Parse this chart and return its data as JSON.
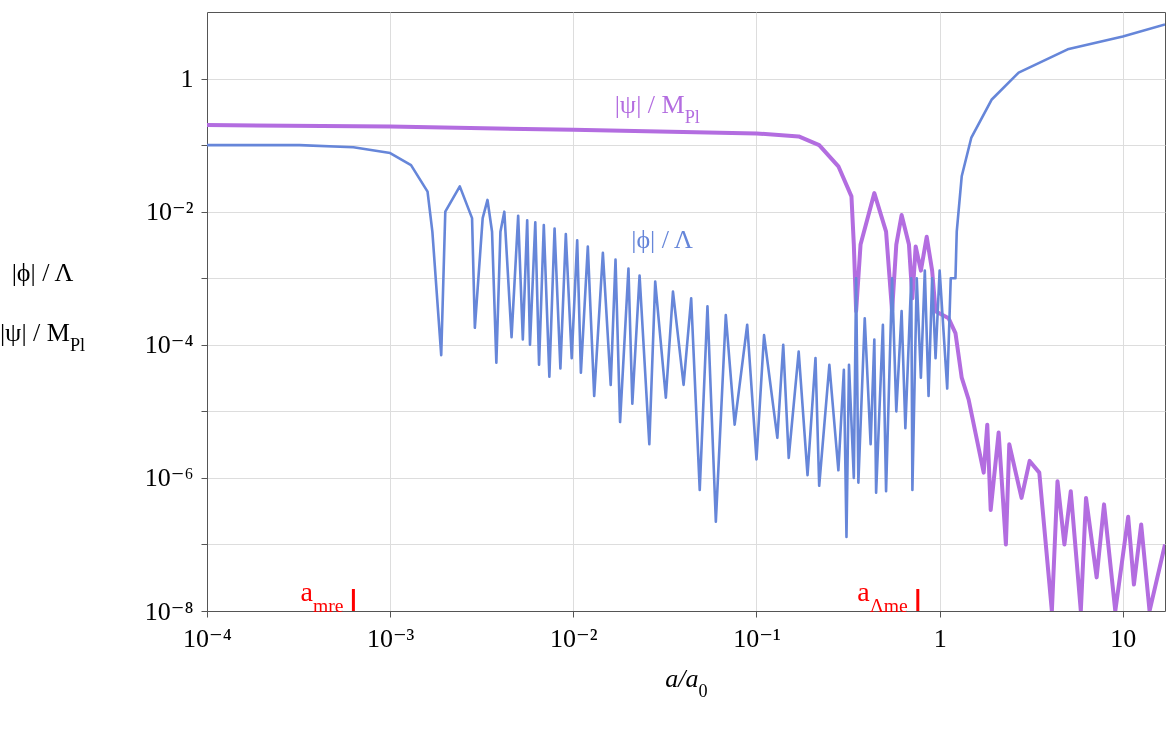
{
  "chart_data": {
    "type": "line",
    "xlabel": "a/a$_{0}$",
    "ylabel": "|ϕ| / Λ\n|ψ| / M$_{Pl}$",
    "log": "xy",
    "grid": true,
    "xlim": [
      0.0001,
      17
    ],
    "ylim": [
      1e-08,
      10
    ],
    "xticks": [
      {
        "value": 0.0001,
        "label": "10⁻⁴"
      },
      {
        "value": 0.001,
        "label": "10⁻³"
      },
      {
        "value": 0.01,
        "label": "10⁻²"
      },
      {
        "value": 0.1,
        "label": "10⁻¹"
      },
      1,
      10
    ],
    "yticks": [
      {
        "value": 1e-08,
        "label": "10⁻⁸"
      },
      {
        "value": 1e-07,
        "label": null
      },
      {
        "value": 1e-06,
        "label": "10⁻⁶"
      },
      {
        "value": 1e-05,
        "label": null
      },
      {
        "value": 0.0001,
        "label": "10⁻⁴"
      },
      {
        "value": 0.001,
        "label": null
      },
      {
        "value": 0.01,
        "label": "10⁻²"
      },
      {
        "value": 0.1,
        "label": null
      },
      1
    ],
    "ref_lines": [
      {
        "axis": "x",
        "value": 0.00063,
        "label": "a$_{mre}$",
        "color": "#ff0000"
      },
      {
        "axis": "x",
        "value": 0.76,
        "label": "a$_{Λme}$",
        "color": "#ff0000"
      }
    ],
    "series": [
      {
        "name": "|ψ| / M$_{Pl}$",
        "color": "#b36de0",
        "x": [
          0.0001,
          0.001,
          0.01,
          0.1,
          0.17,
          0.22,
          0.28,
          0.33,
          0.34,
          0.35,
          0.37,
          0.44,
          0.51,
          0.55,
          0.58,
          0.62,
          0.68,
          0.71,
          0.74,
          0.79,
          0.85,
          0.91,
          0.95,
          1.12,
          1.22,
          1.32,
          1.44,
          1.74,
          1.82,
          1.9,
          2.1,
          2.3,
          2.4,
          2.8,
          3.1,
          3.5,
          4.1,
          4.4,
          4.8,
          5.2,
          5.9,
          6.3,
          7.2,
          7.9,
          9.1,
          10.7,
          11.5,
          12.6,
          14,
          17
        ],
        "values": [
          0.2,
          0.19,
          0.17,
          0.15,
          0.135,
          0.1,
          0.048,
          0.017,
          0.0032,
          0.00032,
          0.0032,
          0.019,
          0.005,
          0.00032,
          0.0032,
          0.0089,
          0.0032,
          0.0005,
          0.003,
          0.0013,
          0.0042,
          0.0013,
          0.00032,
          0.00025,
          0.00015,
          3.2e-05,
          1.5e-05,
          1.2e-06,
          6.3e-06,
          3.3e-07,
          4.8e-06,
          1e-07,
          3.2e-06,
          5e-07,
          1.8e-06,
          1.2e-06,
          1e-08,
          8.9e-07,
          1e-07,
          6.3e-07,
          1e-08,
          5e-07,
          3.2e-08,
          4e-07,
          1e-08,
          2.6e-07,
          2.5e-08,
          2e-07,
          1e-08,
          1e-07
        ]
      },
      {
        "name": "|ϕ| / Λ",
        "color": "#6686d9",
        "x": [
          0.0001,
          0.00032,
          0.00063,
          0.001,
          0.0013,
          0.0016,
          0.0017,
          0.0019,
          0.002,
          0.0024,
          0.0028,
          0.0029,
          0.0032,
          0.0034,
          0.0036,
          0.0038,
          0.004,
          0.0042,
          0.0046,
          0.005,
          0.0053,
          0.0056,
          0.0058,
          0.0062,
          0.0065,
          0.0069,
          0.0074,
          0.0079,
          0.0085,
          0.0091,
          0.0098,
          0.0105,
          0.011,
          0.012,
          0.013,
          0.0145,
          0.016,
          0.017,
          0.018,
          0.02,
          0.021,
          0.023,
          0.026,
          0.028,
          0.032,
          0.035,
          0.04,
          0.044,
          0.049,
          0.054,
          0.06,
          0.068,
          0.076,
          0.089,
          0.1,
          0.11,
          0.13,
          0.14,
          0.15,
          0.17,
          0.19,
          0.21,
          0.22,
          0.25,
          0.28,
          0.3,
          0.31,
          0.32,
          0.34,
          0.35,
          0.36,
          0.39,
          0.42,
          0.44,
          0.45,
          0.49,
          0.51,
          0.55,
          0.58,
          0.62,
          0.65,
          0.7,
          0.71,
          0.75,
          0.79,
          0.83,
          0.87,
          0.91,
          0.95,
          1,
          1.1,
          1.15,
          1.22,
          1.24,
          1.32,
          1.49,
          1.92,
          2.7,
          5,
          10,
          17
        ],
        "values": [
          0.1,
          0.1,
          0.093,
          0.076,
          0.05,
          0.02,
          0.005,
          7e-05,
          0.01,
          0.024,
          0.008,
          0.00018,
          0.008,
          0.015,
          0.005,
          5.4e-05,
          0.005,
          0.01,
          0.00013,
          0.0087,
          0.00012,
          0.0074,
          0.0001,
          0.0069,
          5e-05,
          0.0063,
          3.3e-05,
          0.0056,
          4.4e-05,
          0.0046,
          6.3e-05,
          0.0037,
          3.8e-05,
          0.003,
          1.7e-05,
          0.0024,
          2.5e-05,
          0.0019,
          6.9e-06,
          0.0014,
          1.3e-05,
          0.0011,
          3.2e-06,
          0.00089,
          1.6e-05,
          0.00063,
          2.5e-05,
          0.0005,
          6.6e-07,
          0.00038,
          2.2e-07,
          0.00028,
          6.3e-06,
          0.0002,
          1.9e-06,
          0.00014,
          4e-06,
          0.0001,
          2e-06,
          7.9e-05,
          1.1e-06,
          6.3e-05,
          7.6e-07,
          5e-05,
          1.3e-06,
          4.2e-05,
          1.3e-07,
          5e-05,
          1e-06,
          0.001,
          8.5e-07,
          0.00025,
          3.2e-06,
          0.00012,
          6e-07,
          0.0002,
          6.3e-07,
          0.001,
          1e-05,
          0.00032,
          5.6e-06,
          0.001,
          6.6e-07,
          0.001,
          3.2e-05,
          0.0013,
          1.7e-05,
          0.001,
          6.3e-05,
          0.0013,
          2.2e-05,
          0.001,
          0.001,
          0.005,
          0.034,
          0.13,
          0.48,
          1.23,
          2.75,
          4.3,
          6.5
        ]
      }
    ]
  }
}
